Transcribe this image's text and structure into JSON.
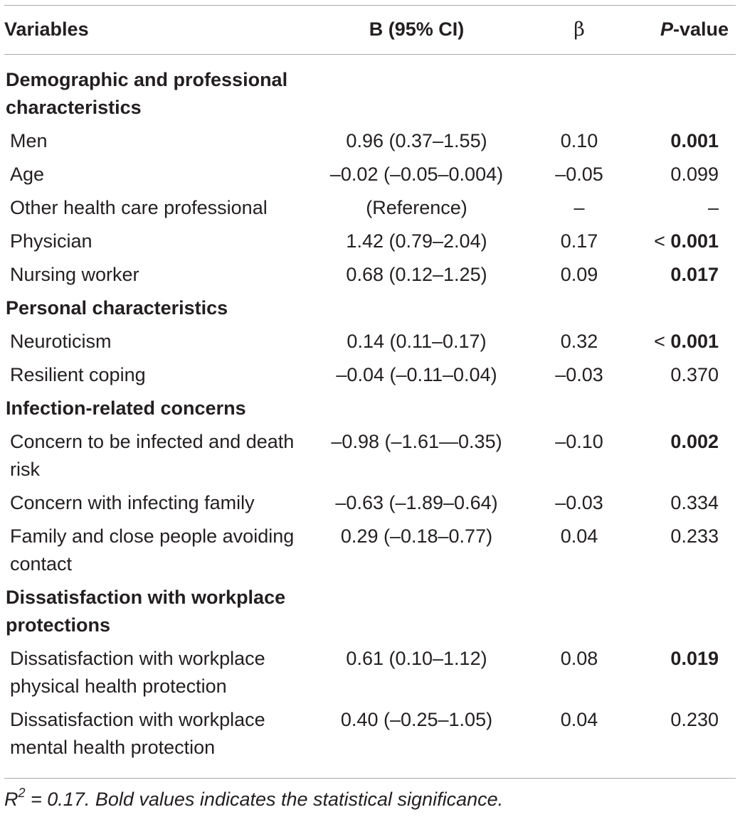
{
  "headers": {
    "variables": "Variables",
    "b_ci": "B (95% CI)",
    "beta": "β",
    "p_italic": "P",
    "p_rest": "-value"
  },
  "sections": [
    {
      "title": "Demographic and professional characteristics",
      "rows": [
        {
          "variable": "Men",
          "b": "0.96 (0.37–1.55)",
          "beta": "0.10",
          "p": "0.001",
          "p_bold": true
        },
        {
          "variable": "Age",
          "b": "–0.02 (–0.05–0.004)",
          "beta": "–0.05",
          "p": "0.099",
          "p_bold": false
        },
        {
          "variable": "Other health care professional",
          "b": "(Reference)",
          "beta": "–",
          "p": "–",
          "p_bold": false
        },
        {
          "variable": "Physician",
          "b": "1.42 (0.79–2.04)",
          "beta": "0.17",
          "p_prefix": "< ",
          "p": "0.001",
          "p_bold": true
        },
        {
          "variable": "Nursing worker",
          "b": "0.68 (0.12–1.25)",
          "beta": "0.09",
          "p": "0.017",
          "p_bold": true
        }
      ]
    },
    {
      "title": "Personal characteristics",
      "rows": [
        {
          "variable": "Neuroticism",
          "b": "0.14 (0.11–0.17)",
          "beta": "0.32",
          "p_prefix": "< ",
          "p": "0.001",
          "p_bold": true
        },
        {
          "variable": "Resilient coping",
          "b": "–0.04 (–0.11–0.04)",
          "beta": "–0.03",
          "p": "0.370",
          "p_bold": false
        }
      ]
    },
    {
      "title": "Infection-related concerns",
      "rows": [
        {
          "variable": "Concern to be infected and death risk",
          "b": "–0.98 (–1.61—0.35)",
          "beta": "–0.10",
          "p": "0.002",
          "p_bold": true
        },
        {
          "variable": "Concern with infecting family",
          "b": "–0.63 (–1.89–0.64)",
          "beta": "–0.03",
          "p": "0.334",
          "p_bold": false
        },
        {
          "variable": "Family and close people avoiding contact",
          "b": "0.29 (–0.18–0.77)",
          "beta": "0.04",
          "p": "0.233",
          "p_bold": false
        }
      ]
    },
    {
      "title": "Dissatisfaction with workplace protections",
      "rows": [
        {
          "variable": "Dissatisfaction with workplace physical health protection",
          "b": "0.61 (0.10–1.12)",
          "beta": "0.08",
          "p": "0.019",
          "p_bold": true
        },
        {
          "variable": "Dissatisfaction with workplace mental health protection",
          "b": "0.40 (–0.25–1.05)",
          "beta": "0.04",
          "p": "0.230",
          "p_bold": false
        }
      ]
    }
  ],
  "footnote": {
    "r": "R",
    "sup": "2",
    "text": " = 0.17. Bold values indicates the statistical significance."
  }
}
